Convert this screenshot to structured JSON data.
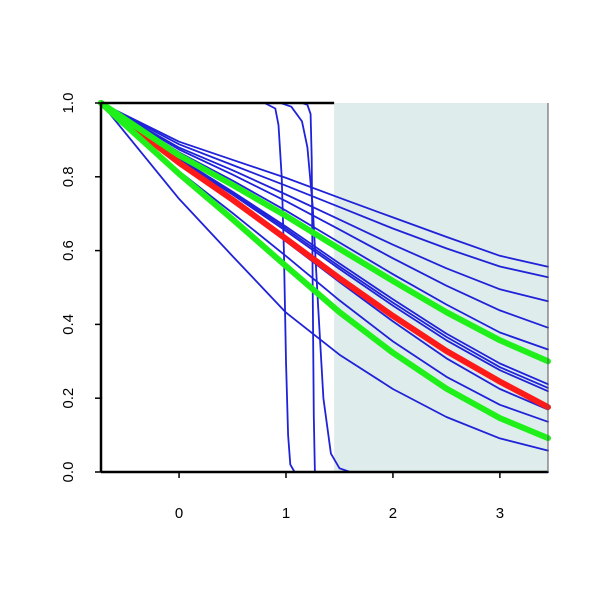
{
  "chart_data": {
    "type": "line",
    "title": "",
    "xlabel": "",
    "ylabel": "",
    "xlim": [
      -0.73,
      3.45
    ],
    "ylim": [
      0.0,
      1.0
    ],
    "x_ticks": [
      0,
      1,
      2,
      3
    ],
    "x_tick_labels": [
      "0",
      "1",
      "2",
      "3"
    ],
    "y_ticks": [
      0.0,
      0.2,
      0.4,
      0.6,
      0.8,
      1.0
    ],
    "y_tick_labels": [
      "0.0",
      "0.2",
      "0.4",
      "0.6",
      "0.8",
      "1.0"
    ],
    "grid": false,
    "legend": "none",
    "shaded_region": {
      "x_from": 1.45,
      "x_to": 3.45,
      "color": "#dfecec"
    },
    "colors": {
      "blue": "#1f22d8",
      "red": "#ff1a1a",
      "green": "#1ff01a",
      "axis": "#000000"
    },
    "series": [
      {
        "color": "blue",
        "width": "thin",
        "x": [
          -0.73,
          0.0,
          0.5,
          1.0,
          1.5,
          2.0,
          2.5,
          3.0,
          3.45
        ],
        "y": [
          1.0,
          0.895,
          0.846,
          0.797,
          0.743,
          0.69,
          0.637,
          0.586,
          0.556
        ]
      },
      {
        "color": "blue",
        "width": "thin",
        "x": [
          -0.73,
          0.0,
          0.5,
          1.0,
          1.5,
          2.0,
          2.5,
          3.0,
          3.45
        ],
        "y": [
          1.0,
          0.888,
          0.832,
          0.776,
          0.718,
          0.66,
          0.606,
          0.557,
          0.528
        ]
      },
      {
        "color": "blue",
        "width": "thin",
        "x": [
          -0.73,
          0.0,
          0.5,
          1.0,
          1.5,
          2.0,
          2.5,
          3.0,
          3.45
        ],
        "y": [
          1.0,
          0.879,
          0.818,
          0.752,
          0.684,
          0.616,
          0.552,
          0.495,
          0.463
        ]
      },
      {
        "color": "blue",
        "width": "thin",
        "x": [
          -0.73,
          0.0,
          0.5,
          1.0,
          1.5,
          2.0,
          2.5,
          3.0,
          3.45
        ],
        "y": [
          1.0,
          0.874,
          0.806,
          0.734,
          0.657,
          0.579,
          0.505,
          0.438,
          0.391
        ]
      },
      {
        "color": "blue",
        "width": "thin",
        "x": [
          -0.73,
          0.0,
          0.5,
          1.0,
          1.5,
          2.0,
          2.5,
          3.0,
          3.45
        ],
        "y": [
          1.0,
          0.866,
          0.79,
          0.708,
          0.622,
          0.536,
          0.454,
          0.378,
          0.332
        ]
      },
      {
        "color": "blue",
        "width": "thin",
        "x": [
          -0.73,
          0.0,
          0.5,
          1.0,
          1.5,
          2.0,
          2.5,
          3.0,
          3.45
        ],
        "y": [
          1.0,
          0.862,
          0.782,
          0.696,
          0.606,
          0.515,
          0.43,
          0.352,
          0.304
        ]
      },
      {
        "color": "blue",
        "width": "thin",
        "x": [
          -0.73,
          0.0,
          0.5,
          1.0,
          1.5,
          2.0,
          2.5,
          3.0,
          3.45
        ],
        "y": [
          1.0,
          0.85,
          0.76,
          0.665,
          0.565,
          0.468,
          0.375,
          0.294,
          0.238
        ]
      },
      {
        "color": "blue",
        "width": "thin",
        "x": [
          -0.73,
          0.0,
          0.5,
          1.0,
          1.5,
          2.0,
          2.5,
          3.0,
          3.45
        ],
        "y": [
          1.0,
          0.848,
          0.756,
          0.659,
          0.557,
          0.459,
          0.366,
          0.284,
          0.228
        ]
      },
      {
        "color": "blue",
        "width": "thin",
        "x": [
          -0.73,
          0.0,
          0.5,
          1.0,
          1.5,
          2.0,
          2.5,
          3.0,
          3.45
        ],
        "y": [
          1.0,
          0.845,
          0.752,
          0.653,
          0.55,
          0.451,
          0.357,
          0.276,
          0.219
        ]
      },
      {
        "color": "blue",
        "width": "thin",
        "x": [
          -0.73,
          0.0,
          0.5,
          1.0,
          1.5,
          2.0,
          2.5,
          3.0,
          3.45
        ],
        "y": [
          1.0,
          0.835,
          0.733,
          0.625,
          0.515,
          0.408,
          0.308,
          0.225,
          0.169
        ]
      },
      {
        "color": "blue",
        "width": "thin",
        "x": [
          -0.73,
          0.0,
          0.5,
          1.0,
          1.5,
          2.0,
          2.5,
          3.0,
          3.45
        ],
        "y": [
          1.0,
          0.815,
          0.702,
          0.585,
          0.465,
          0.354,
          0.258,
          0.182,
          0.136
        ]
      },
      {
        "color": "blue",
        "width": "thin",
        "x": [
          -0.73,
          0.0,
          0.5,
          1.0,
          1.5,
          2.0,
          2.5,
          3.0,
          3.45
        ],
        "y": [
          1.0,
          0.74,
          0.585,
          0.432,
          0.318,
          0.225,
          0.149,
          0.091,
          0.058
        ]
      },
      {
        "color": "blue",
        "width": "thin",
        "x": [
          -0.73,
          0.8,
          0.9,
          0.93,
          0.96,
          0.98,
          1.0,
          1.02,
          1.04,
          1.08,
          3.45
        ],
        "y": [
          1.0,
          1.0,
          0.985,
          0.94,
          0.8,
          0.6,
          0.3,
          0.1,
          0.02,
          0.0,
          0.0
        ]
      },
      {
        "color": "blue",
        "width": "thin",
        "x": [
          -0.73,
          1.15,
          1.2,
          1.23,
          1.24,
          1.25,
          1.26,
          1.27,
          3.45
        ],
        "y": [
          1.0,
          1.0,
          0.995,
          0.97,
          0.85,
          0.5,
          0.15,
          0.0,
          0.0
        ]
      },
      {
        "color": "blue",
        "width": "thin",
        "x": [
          -0.73,
          0.95,
          1.05,
          1.15,
          1.2,
          1.25,
          1.3,
          1.35,
          1.42,
          1.5,
          1.6,
          3.45
        ],
        "y": [
          1.0,
          1.0,
          0.99,
          0.95,
          0.88,
          0.72,
          0.45,
          0.2,
          0.05,
          0.01,
          0.0,
          0.0
        ]
      },
      {
        "color": "red",
        "width": "thick",
        "x": [
          -0.73,
          0.0,
          0.5,
          1.0,
          1.5,
          2.0,
          2.5,
          3.0,
          3.45
        ],
        "y": [
          1.0,
          0.838,
          0.738,
          0.632,
          0.525,
          0.423,
          0.328,
          0.245,
          0.176
        ]
      },
      {
        "color": "green",
        "width": "thick",
        "x": [
          -0.73,
          0.0,
          0.5,
          1.0,
          1.5,
          2.0,
          2.5,
          3.0,
          3.45
        ],
        "y": [
          1.0,
          0.858,
          0.778,
          0.694,
          0.605,
          0.518,
          0.433,
          0.357,
          0.3
        ]
      },
      {
        "color": "green",
        "width": "thick",
        "x": [
          -0.73,
          0.0,
          0.5,
          1.0,
          1.5,
          2.0,
          2.5,
          3.0,
          3.45
        ],
        "y": [
          1.0,
          0.808,
          0.685,
          0.558,
          0.433,
          0.323,
          0.226,
          0.146,
          0.092
        ]
      }
    ]
  }
}
